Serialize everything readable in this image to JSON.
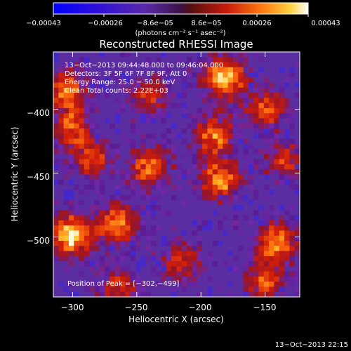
{
  "colorbar": {
    "tick_labels": [
      "−0.00043",
      "−0.00026",
      "−8.6e−05",
      "8.6e−05",
      "0.00026",
      "0.00043"
    ],
    "unit_label": "(photons cm⁻² s⁻¹ asec⁻²)",
    "range": [
      -0.00043,
      0.00043
    ]
  },
  "chart_data": {
    "type": "heatmap",
    "title": "Reconstructed RHESSI Image",
    "xlabel": "Heliocentric X (arcsec)",
    "ylabel": "Heliocentric Y (arcsec)",
    "xlim": [
      -315,
      -123
    ],
    "ylim": [
      -547,
      -355
    ],
    "x_ticks": [
      -300,
      -250,
      -200,
      -150
    ],
    "y_ticks": [
      -400,
      -450,
      -500
    ],
    "x_tick_labels": [
      "−300",
      "−250",
      "−200",
      "−150"
    ],
    "y_tick_labels": [
      "−400",
      "−450",
      "−500"
    ],
    "hot_spots": [
      {
        "x": -302,
        "y": -499,
        "v": 1.0
      },
      {
        "x": -305,
        "y": -385,
        "v": 0.75
      },
      {
        "x": -182,
        "y": -375,
        "v": 0.95
      },
      {
        "x": -265,
        "y": -490,
        "v": 0.8
      },
      {
        "x": -140,
        "y": -505,
        "v": 0.8
      },
      {
        "x": -185,
        "y": -455,
        "v": 0.8
      },
      {
        "x": -190,
        "y": -420,
        "v": 0.7
      },
      {
        "x": -240,
        "y": -445,
        "v": 0.7
      },
      {
        "x": -150,
        "y": -400,
        "v": 0.6
      },
      {
        "x": -215,
        "y": -520,
        "v": 0.55
      },
      {
        "x": -285,
        "y": -440,
        "v": 0.6
      },
      {
        "x": -300,
        "y": -415,
        "v": 0.6
      },
      {
        "x": -135,
        "y": -440,
        "v": 0.5
      },
      {
        "x": -240,
        "y": -390,
        "v": 0.5
      },
      {
        "x": -150,
        "y": -535,
        "v": 0.6
      },
      {
        "x": -265,
        "y": -540,
        "v": 0.5
      }
    ],
    "annotations": {
      "line1": "13−Oct−2013 09:44:48.000 to 09:46:04.000",
      "line2": "Detectors: 3F 5F 6F 7F 8F 9F, Att 0",
      "line3": "Energy Range: 25.0 − 50.0 keV",
      "line4": "Clean    Total counts: 2.22E+03",
      "peak": "Position of Peak = [−302,−499]"
    }
  },
  "footer": {
    "timestamp": "13−Oct−2013 22:15"
  }
}
